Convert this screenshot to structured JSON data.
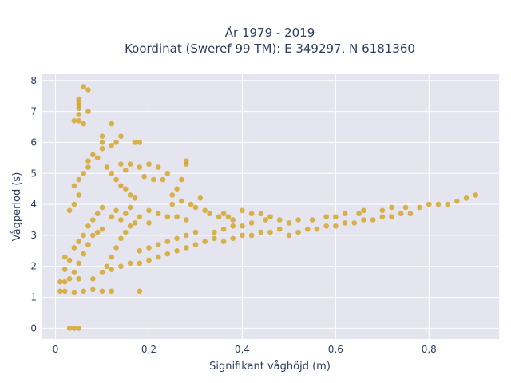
{
  "chart_data": {
    "type": "scatter",
    "title": "År 1979 - 2019",
    "subtitle": "Koordinat (Sweref 99 TM): E 349297, N 6181360",
    "xlabel": "Signifikant våghöjd (m)",
    "ylabel": "Vågperiod (s)",
    "xlim": [
      -0.03,
      0.95
    ],
    "ylim": [
      -0.35,
      8.2
    ],
    "xticks": [
      0,
      0.2,
      0.4,
      0.6,
      0.8
    ],
    "xtick_labels": [
      "0",
      "0,2",
      "0,4",
      "0,6",
      "0,8"
    ],
    "yticks": [
      0,
      1,
      2,
      3,
      4,
      5,
      6,
      7,
      8
    ],
    "ytick_labels": [
      "0",
      "1",
      "2",
      "3",
      "4",
      "5",
      "6",
      "7",
      "8"
    ],
    "grid": true,
    "marker_color": "#d4a220",
    "background_color": "#e5e5ef",
    "series": [
      {
        "values": [
          [
            0.03,
            0
          ],
          [
            0.04,
            0
          ],
          [
            0.05,
            0
          ],
          [
            0.01,
            1.2
          ],
          [
            0.02,
            1.2
          ],
          [
            0.04,
            1.15
          ],
          [
            0.06,
            1.2
          ],
          [
            0.08,
            1.25
          ],
          [
            0.1,
            1.2
          ],
          [
            0.12,
            1.2
          ],
          [
            0.18,
            1.2
          ],
          [
            0.01,
            1.5
          ],
          [
            0.02,
            1.5
          ],
          [
            0.03,
            1.6
          ],
          [
            0.05,
            1.6
          ],
          [
            0.02,
            1.9
          ],
          [
            0.03,
            2.2
          ],
          [
            0.02,
            2.3
          ],
          [
            0.04,
            1.8
          ],
          [
            0.05,
            2.1
          ],
          [
            0.06,
            2.4
          ],
          [
            0.07,
            2.7
          ],
          [
            0.08,
            3.0
          ],
          [
            0.09,
            3.1
          ],
          [
            0.1,
            3.2
          ],
          [
            0.04,
            2.6
          ],
          [
            0.05,
            2.8
          ],
          [
            0.06,
            3.0
          ],
          [
            0.07,
            3.3
          ],
          [
            0.08,
            3.5
          ],
          [
            0.09,
            3.7
          ],
          [
            0.1,
            3.9
          ],
          [
            0.11,
            2.0
          ],
          [
            0.12,
            2.3
          ],
          [
            0.13,
            2.6
          ],
          [
            0.14,
            2.9
          ],
          [
            0.15,
            3.1
          ],
          [
            0.16,
            3.3
          ],
          [
            0.17,
            3.4
          ],
          [
            0.08,
            1.6
          ],
          [
            0.1,
            1.8
          ],
          [
            0.12,
            1.9
          ],
          [
            0.14,
            2.0
          ],
          [
            0.16,
            2.1
          ],
          [
            0.18,
            2.1
          ],
          [
            0.2,
            2.2
          ],
          [
            0.18,
            2.5
          ],
          [
            0.2,
            2.6
          ],
          [
            0.22,
            2.7
          ],
          [
            0.24,
            2.8
          ],
          [
            0.26,
            2.9
          ],
          [
            0.28,
            3.0
          ],
          [
            0.3,
            3.1
          ],
          [
            0.22,
            2.3
          ],
          [
            0.24,
            2.4
          ],
          [
            0.26,
            2.5
          ],
          [
            0.28,
            2.6
          ],
          [
            0.3,
            2.7
          ],
          [
            0.32,
            2.8
          ],
          [
            0.34,
            2.9
          ],
          [
            0.36,
            2.8
          ],
          [
            0.38,
            2.9
          ],
          [
            0.4,
            3.0
          ],
          [
            0.42,
            3.0
          ],
          [
            0.44,
            3.1
          ],
          [
            0.46,
            3.1
          ],
          [
            0.48,
            3.2
          ],
          [
            0.34,
            3.1
          ],
          [
            0.36,
            3.2
          ],
          [
            0.38,
            3.3
          ],
          [
            0.4,
            3.3
          ],
          [
            0.42,
            3.4
          ],
          [
            0.45,
            3.5
          ],
          [
            0.48,
            3.5
          ],
          [
            0.5,
            3.0
          ],
          [
            0.52,
            3.1
          ],
          [
            0.54,
            3.2
          ],
          [
            0.56,
            3.2
          ],
          [
            0.58,
            3.3
          ],
          [
            0.6,
            3.3
          ],
          [
            0.62,
            3.4
          ],
          [
            0.5,
            3.4
          ],
          [
            0.52,
            3.5
          ],
          [
            0.55,
            3.5
          ],
          [
            0.58,
            3.6
          ],
          [
            0.6,
            3.6
          ],
          [
            0.62,
            3.7
          ],
          [
            0.65,
            3.7
          ],
          [
            0.64,
            3.4
          ],
          [
            0.66,
            3.5
          ],
          [
            0.68,
            3.5
          ],
          [
            0.7,
            3.6
          ],
          [
            0.72,
            3.6
          ],
          [
            0.74,
            3.7
          ],
          [
            0.76,
            3.7
          ],
          [
            0.66,
            3.8
          ],
          [
            0.7,
            3.8
          ],
          [
            0.72,
            3.9
          ],
          [
            0.75,
            3.9
          ],
          [
            0.78,
            3.9
          ],
          [
            0.8,
            4.0
          ],
          [
            0.82,
            4.0
          ],
          [
            0.84,
            4.0
          ],
          [
            0.86,
            4.1
          ],
          [
            0.88,
            4.2
          ],
          [
            0.9,
            4.3
          ],
          [
            0.03,
            3.8
          ],
          [
            0.04,
            4.0
          ],
          [
            0.05,
            4.3
          ],
          [
            0.04,
            4.6
          ],
          [
            0.05,
            4.8
          ],
          [
            0.06,
            5.0
          ],
          [
            0.07,
            5.2
          ],
          [
            0.07,
            5.4
          ],
          [
            0.08,
            5.6
          ],
          [
            0.09,
            5.5
          ],
          [
            0.1,
            5.8
          ],
          [
            0.1,
            6.0
          ],
          [
            0.1,
            6.2
          ],
          [
            0.12,
            5.9
          ],
          [
            0.11,
            5.2
          ],
          [
            0.12,
            5.0
          ],
          [
            0.13,
            4.8
          ],
          [
            0.14,
            4.6
          ],
          [
            0.15,
            4.5
          ],
          [
            0.16,
            4.3
          ],
          [
            0.17,
            4.2
          ],
          [
            0.14,
            5.3
          ],
          [
            0.15,
            5.1
          ],
          [
            0.16,
            5.3
          ],
          [
            0.18,
            5.2
          ],
          [
            0.2,
            5.3
          ],
          [
            0.13,
            6.0
          ],
          [
            0.17,
            6.0
          ],
          [
            0.14,
            6.2
          ],
          [
            0.18,
            6.0
          ],
          [
            0.19,
            4.9
          ],
          [
            0.21,
            4.8
          ],
          [
            0.23,
            4.8
          ],
          [
            0.22,
            5.2
          ],
          [
            0.24,
            5.0
          ],
          [
            0.25,
            4.3
          ],
          [
            0.26,
            4.5
          ],
          [
            0.27,
            4.8
          ],
          [
            0.28,
            5.4
          ],
          [
            0.28,
            5.3
          ],
          [
            0.3,
            3.9
          ],
          [
            0.32,
            3.8
          ],
          [
            0.12,
            3.6
          ],
          [
            0.13,
            3.8
          ],
          [
            0.14,
            3.5
          ],
          [
            0.15,
            3.7
          ],
          [
            0.16,
            3.9
          ],
          [
            0.18,
            3.6
          ],
          [
            0.2,
            3.4
          ],
          [
            0.2,
            3.8
          ],
          [
            0.22,
            3.7
          ],
          [
            0.24,
            3.6
          ],
          [
            0.26,
            3.6
          ],
          [
            0.28,
            3.5
          ],
          [
            0.25,
            4.0
          ],
          [
            0.27,
            4.1
          ],
          [
            0.29,
            4.0
          ],
          [
            0.31,
            4.2
          ],
          [
            0.33,
            3.7
          ],
          [
            0.35,
            3.6
          ],
          [
            0.37,
            3.6
          ],
          [
            0.4,
            3.8
          ],
          [
            0.42,
            3.7
          ],
          [
            0.44,
            3.7
          ],
          [
            0.46,
            3.6
          ],
          [
            0.36,
            3.7
          ],
          [
            0.38,
            3.5
          ],
          [
            0.04,
            6.7
          ],
          [
            0.05,
            6.7
          ],
          [
            0.05,
            6.9
          ],
          [
            0.05,
            7.2
          ],
          [
            0.05,
            7.3
          ],
          [
            0.05,
            7.4
          ],
          [
            0.06,
            7.8
          ],
          [
            0.07,
            7.7
          ],
          [
            0.12,
            6.6
          ],
          [
            0.06,
            6.6
          ],
          [
            0.07,
            7.0
          ],
          [
            0.05,
            7.1
          ]
        ]
      }
    ]
  }
}
